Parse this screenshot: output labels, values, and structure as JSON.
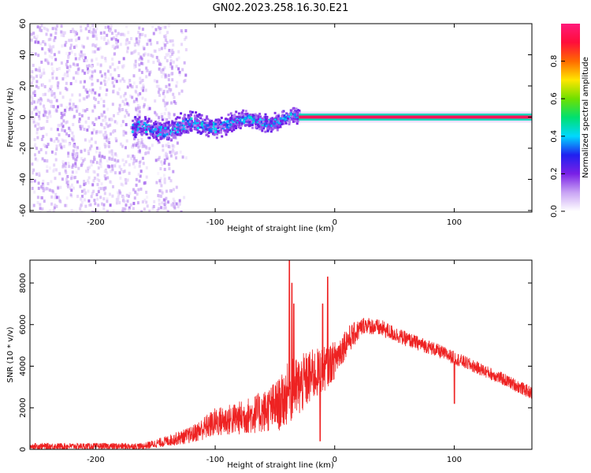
{
  "title": "GN02.2023.258.16.30.E21",
  "chart_data": [
    {
      "type": "heatmap",
      "xlabel": "Height of straight line (km)",
      "ylabel": "Frequency (Hz)",
      "xlim": [
        -255,
        165
      ],
      "ylim": [
        -61,
        60
      ],
      "xticks": [
        -200,
        -100,
        0,
        100
      ],
      "yticks": [
        -60,
        -40,
        -20,
        0,
        20,
        40,
        60
      ],
      "colorbar": {
        "label": "Normalized spectral amplitude",
        "range": [
          0,
          1
        ],
        "ticks": [
          "0.0",
          "0.2",
          "0.4",
          "0.6",
          "0.8"
        ],
        "colormap": [
          "#ffffff",
          "#c9a4f4",
          "#7a20e6",
          "#2020f0",
          "#00d8ff",
          "#00e070",
          "#6fe000",
          "#ffe600",
          "#ff6a00",
          "#ff0d3a",
          "#ff1a7a"
        ]
      },
      "regions": [
        {
          "name": "diffuse noise",
          "x_range": [
            -255,
            -125
          ],
          "freq_range": [
            -61,
            60
          ],
          "amplitude": 0.05
        },
        {
          "name": "band",
          "x_range": [
            -170,
            -30
          ],
          "freq_center": [
            -8,
            0
          ],
          "freq_halfwidth": 10,
          "amplitude": 0.3
        },
        {
          "name": "narrow line",
          "x_range": [
            -30,
            165
          ],
          "freq_center": 0,
          "freq_halfwidth": 2,
          "amplitude": 0.95
        }
      ]
    },
    {
      "type": "line",
      "xlabel": "Height of straight line (km)",
      "ylabel": "SNR (10 * v/v)",
      "xlim": [
        -255,
        165
      ],
      "ylim": [
        0,
        9100
      ],
      "xticks": [
        -200,
        -100,
        0,
        100
      ],
      "yticks": [
        0,
        2000,
        4000,
        6000,
        8000
      ],
      "color": "#ee2222",
      "envelope": {
        "x": [
          -255,
          -200,
          -160,
          -140,
          -120,
          -100,
          -80,
          -60,
          -45,
          -38,
          -30,
          -20,
          -10,
          0,
          10,
          25,
          40,
          60,
          80,
          100,
          120,
          140,
          165
        ],
        "base": [
          150,
          150,
          150,
          400,
          700,
          1300,
          1500,
          1800,
          2200,
          2800,
          3000,
          3500,
          3800,
          4300,
          5200,
          6000,
          5800,
          5300,
          4900,
          4400,
          3900,
          3400,
          2700
        ],
        "noise": [
          150,
          150,
          150,
          250,
          400,
          700,
          800,
          1000,
          1300,
          1500,
          1500,
          1300,
          1100,
          900,
          700,
          400,
          400,
          350,
          330,
          320,
          300,
          300,
          300
        ]
      },
      "spikes": [
        {
          "x": -38,
          "y": 9100
        },
        {
          "x": -36,
          "y": 8000
        },
        {
          "x": -34,
          "y": 7000
        },
        {
          "x": -10,
          "y": 7000
        },
        {
          "x": -6,
          "y": 8300
        },
        {
          "x": -12,
          "y": 400
        },
        {
          "x": 100,
          "y": 2200
        }
      ]
    }
  ]
}
